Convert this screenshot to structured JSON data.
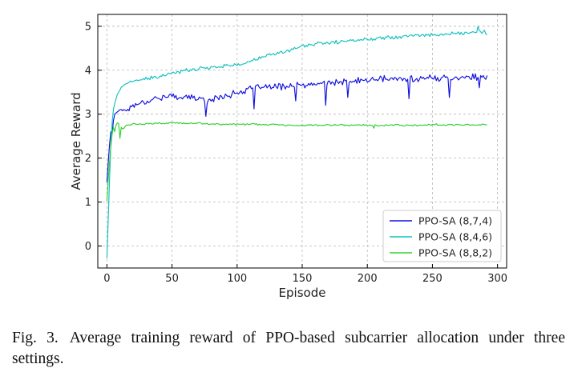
{
  "chart_data": {
    "type": "line",
    "title": "",
    "xlabel": "Episode",
    "ylabel": "Average Reward",
    "xlim": [
      -7,
      307
    ],
    "ylim": [
      -0.5,
      5.27
    ],
    "xticks": [
      0,
      50,
      100,
      150,
      200,
      250,
      300
    ],
    "yticks": [
      0,
      1,
      2,
      3,
      4,
      5
    ],
    "grid": true,
    "legend_position": "lower-right",
    "series": [
      {
        "name": "PPO-SA (8,7,4)",
        "color": "#1010e0",
        "anchors": [
          [
            0,
            1.45
          ],
          [
            1,
            1.9
          ],
          [
            2,
            2.3
          ],
          [
            3,
            2.6
          ],
          [
            4,
            2.55
          ],
          [
            5,
            2.85
          ],
          [
            6,
            3.0
          ],
          [
            8,
            3.05
          ],
          [
            10,
            3.1
          ],
          [
            15,
            3.1
          ],
          [
            20,
            3.2
          ],
          [
            30,
            3.3
          ],
          [
            40,
            3.38
          ],
          [
            50,
            3.4
          ],
          [
            60,
            3.4
          ],
          [
            70,
            3.35
          ],
          [
            80,
            3.32
          ],
          [
            90,
            3.42
          ],
          [
            100,
            3.48
          ],
          [
            110,
            3.58
          ],
          [
            120,
            3.62
          ],
          [
            130,
            3.62
          ],
          [
            140,
            3.65
          ],
          [
            150,
            3.65
          ],
          [
            160,
            3.68
          ],
          [
            170,
            3.72
          ],
          [
            180,
            3.72
          ],
          [
            190,
            3.75
          ],
          [
            200,
            3.78
          ],
          [
            210,
            3.8
          ],
          [
            220,
            3.8
          ],
          [
            230,
            3.8
          ],
          [
            240,
            3.82
          ],
          [
            250,
            3.82
          ],
          [
            260,
            3.82
          ],
          [
            270,
            3.84
          ],
          [
            280,
            3.85
          ],
          [
            290,
            3.82
          ],
          [
            292,
            3.82
          ]
        ],
        "noise": 0.09,
        "spikes": [
          [
            76,
            2.95
          ],
          [
            113,
            3.12
          ],
          [
            145,
            3.3
          ],
          [
            168,
            3.2
          ],
          [
            185,
            3.38
          ],
          [
            232,
            3.35
          ],
          [
            263,
            3.38
          ],
          [
            286,
            3.6
          ]
        ]
      },
      {
        "name": "PPO-SA (8,4,6)",
        "color": "#10c0c0",
        "anchors": [
          [
            0,
            -0.28
          ],
          [
            1,
            0.6
          ],
          [
            2,
            1.5
          ],
          [
            3,
            2.3
          ],
          [
            4,
            2.8
          ],
          [
            5,
            3.1
          ],
          [
            6,
            3.25
          ],
          [
            8,
            3.45
          ],
          [
            10,
            3.55
          ],
          [
            12,
            3.65
          ],
          [
            15,
            3.7
          ],
          [
            20,
            3.75
          ],
          [
            30,
            3.8
          ],
          [
            40,
            3.85
          ],
          [
            50,
            3.92
          ],
          [
            60,
            4.0
          ],
          [
            70,
            4.03
          ],
          [
            80,
            4.07
          ],
          [
            90,
            4.1
          ],
          [
            100,
            4.12
          ],
          [
            110,
            4.2
          ],
          [
            120,
            4.3
          ],
          [
            130,
            4.38
          ],
          [
            140,
            4.45
          ],
          [
            150,
            4.55
          ],
          [
            160,
            4.6
          ],
          [
            170,
            4.62
          ],
          [
            180,
            4.65
          ],
          [
            190,
            4.68
          ],
          [
            200,
            4.7
          ],
          [
            210,
            4.75
          ],
          [
            220,
            4.75
          ],
          [
            230,
            4.78
          ],
          [
            240,
            4.8
          ],
          [
            250,
            4.8
          ],
          [
            260,
            4.82
          ],
          [
            270,
            4.84
          ],
          [
            280,
            4.86
          ],
          [
            290,
            4.88
          ],
          [
            292,
            4.78
          ]
        ],
        "noise": 0.05,
        "spikes": [
          [
            285,
            5.0
          ]
        ]
      },
      {
        "name": "PPO-SA (8,8,2)",
        "color": "#30d030",
        "anchors": [
          [
            0,
            1.02
          ],
          [
            1,
            1.5
          ],
          [
            2,
            1.9
          ],
          [
            3,
            2.25
          ],
          [
            4,
            2.55
          ],
          [
            5,
            2.7
          ],
          [
            6,
            2.6
          ],
          [
            7,
            2.75
          ],
          [
            8,
            2.8
          ],
          [
            10,
            2.78
          ],
          [
            12,
            2.65
          ],
          [
            15,
            2.75
          ],
          [
            20,
            2.77
          ],
          [
            30,
            2.78
          ],
          [
            40,
            2.79
          ],
          [
            50,
            2.8
          ],
          [
            60,
            2.79
          ],
          [
            70,
            2.79
          ],
          [
            80,
            2.78
          ],
          [
            90,
            2.77
          ],
          [
            100,
            2.77
          ],
          [
            110,
            2.77
          ],
          [
            120,
            2.76
          ],
          [
            130,
            2.76
          ],
          [
            140,
            2.75
          ],
          [
            150,
            2.75
          ],
          [
            160,
            2.75
          ],
          [
            170,
            2.75
          ],
          [
            180,
            2.75
          ],
          [
            190,
            2.75
          ],
          [
            200,
            2.75
          ],
          [
            210,
            2.75
          ],
          [
            220,
            2.75
          ],
          [
            230,
            2.75
          ],
          [
            240,
            2.75
          ],
          [
            250,
            2.76
          ],
          [
            260,
            2.76
          ],
          [
            270,
            2.76
          ],
          [
            280,
            2.76
          ],
          [
            290,
            2.76
          ],
          [
            292,
            2.75
          ]
        ],
        "noise": 0.025,
        "spikes": [
          [
            10,
            2.45
          ],
          [
            205,
            2.68
          ]
        ]
      }
    ]
  },
  "caption": {
    "label": "Fig. 3.",
    "text": "Average training reward of PPO-based subcarrier allocation under three settings."
  }
}
